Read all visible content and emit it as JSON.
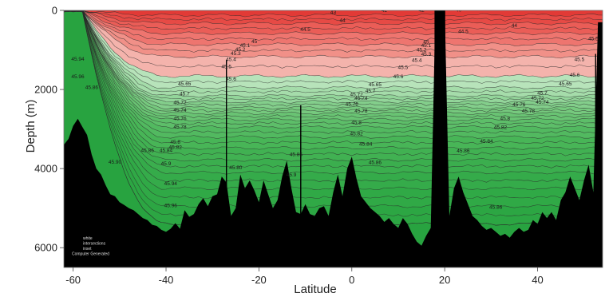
{
  "chart_data": {
    "type": "heatmap",
    "title": "",
    "xlabel": "Latitude",
    "ylabel": "Depth (m)",
    "xlim": [
      -62,
      54
    ],
    "ylim": [
      6500,
      0
    ],
    "y_reversed": true,
    "grid": false,
    "x_ticks": [
      -60,
      -40,
      -20,
      0,
      20,
      40
    ],
    "x_tick_labels": [
      "-60",
      "-40",
      "-20",
      "0",
      "20",
      "40"
    ],
    "y_ticks": [
      0,
      2000,
      4000,
      6000
    ],
    "y_tick_labels": [
      "0",
      "2000",
      "4000",
      "6000"
    ],
    "colors": {
      "high": "#e8413c",
      "mid": "#f4b5ad",
      "low_light": "#b4e2b8",
      "low": "#2eb350",
      "seafloor": "#000000"
    },
    "band_values": [
      43,
      44,
      44.5,
      45,
      45.3,
      45.5,
      45.6,
      45.65,
      45.7,
      45.72,
      45.74,
      45.76,
      45.78,
      45.8,
      45.82,
      45.84,
      45.86,
      45.88,
      45.9,
      45.94,
      45.96
    ],
    "band_colors": [
      "#e23a36",
      "#e64a45",
      "#ea5d57",
      "#ee756f",
      "#f19088",
      "#f4b3ac",
      "#b7e3ba",
      "#a5dcaa",
      "#93d59a",
      "#83ce8b",
      "#76c97e",
      "#69c373",
      "#5dbe69",
      "#52b960",
      "#48b557",
      "#41b152",
      "#3bae4e",
      "#35ab4a",
      "#30a946",
      "#2ca643",
      "#28a340"
    ],
    "band_tops_north": [
      0,
      120,
      330,
      580,
      860,
      1170,
      1660,
      1950,
      2160,
      2310,
      2460,
      2600,
      2760,
      2950,
      3200,
      3480,
      3780,
      4100,
      4500,
      4950,
      5400
    ],
    "contour_labels": [
      {
        "text": "43",
        "lat": -4,
        "depth": 90
      },
      {
        "text": "42",
        "lat": 7,
        "depth": 40
      },
      {
        "text": "42",
        "lat": 15,
        "depth": 40
      },
      {
        "text": "40",
        "lat": 23,
        "depth": 30
      },
      {
        "text": "44",
        "lat": -2,
        "depth": 290
      },
      {
        "text": "44.5",
        "lat": -10,
        "depth": 520
      },
      {
        "text": "44",
        "lat": 35,
        "depth": 420
      },
      {
        "text": "44.5",
        "lat": 24,
        "depth": 580
      },
      {
        "text": "45",
        "lat": -21,
        "depth": 830
      },
      {
        "text": "45.1",
        "lat": -23,
        "depth": 930
      },
      {
        "text": "45.2",
        "lat": -24,
        "depth": 1030
      },
      {
        "text": "45.3",
        "lat": -25,
        "depth": 1130
      },
      {
        "text": "45.4",
        "lat": -26,
        "depth": 1280
      },
      {
        "text": "45.5",
        "lat": -27,
        "depth": 1460
      },
      {
        "text": "45.6",
        "lat": -26,
        "depth": 1780
      },
      {
        "text": "45.65",
        "lat": -36,
        "depth": 1900
      },
      {
        "text": "45.7",
        "lat": -36,
        "depth": 2150
      },
      {
        "text": "45.72",
        "lat": -37,
        "depth": 2370
      },
      {
        "text": "45.74",
        "lat": -37,
        "depth": 2560
      },
      {
        "text": "45.76",
        "lat": -37,
        "depth": 2780
      },
      {
        "text": "45.78",
        "lat": -37,
        "depth": 2990
      },
      {
        "text": "45.8",
        "lat": -38,
        "depth": 3370
      },
      {
        "text": "45.82",
        "lat": -38,
        "depth": 3500
      },
      {
        "text": "45.84",
        "lat": -40,
        "depth": 3580
      },
      {
        "text": "45.86",
        "lat": -44,
        "depth": 3580
      },
      {
        "text": "45.90",
        "lat": -51,
        "depth": 3880
      },
      {
        "text": "45.9",
        "lat": -40,
        "depth": 3920
      },
      {
        "text": "45.94",
        "lat": -39,
        "depth": 4420
      },
      {
        "text": "45.96",
        "lat": -39,
        "depth": 4980
      },
      {
        "text": "45.94",
        "lat": -59,
        "depth": 1270
      },
      {
        "text": "45.96",
        "lat": -59,
        "depth": 1720
      },
      {
        "text": "45.86",
        "lat": -56,
        "depth": 1990
      },
      {
        "text": "45.80",
        "lat": -25,
        "depth": 4020
      },
      {
        "text": "45.9",
        "lat": -13,
        "depth": 4200
      },
      {
        "text": "45.86",
        "lat": -12,
        "depth": 3680
      },
      {
        "text": "45.84",
        "lat": 3,
        "depth": 3420
      },
      {
        "text": "45.82",
        "lat": 1,
        "depth": 3160
      },
      {
        "text": "45.8",
        "lat": 1,
        "depth": 2880
      },
      {
        "text": "45.78",
        "lat": 2,
        "depth": 2580
      },
      {
        "text": "45.76",
        "lat": 0,
        "depth": 2410
      },
      {
        "text": "45.74",
        "lat": 2,
        "depth": 2260
      },
      {
        "text": "45.72",
        "lat": 1,
        "depth": 2170
      },
      {
        "text": "45.7",
        "lat": 4,
        "depth": 2080
      },
      {
        "text": "45.65",
        "lat": 5,
        "depth": 1920
      },
      {
        "text": "45.6",
        "lat": 10,
        "depth": 1720
      },
      {
        "text": "45.5",
        "lat": 11,
        "depth": 1480
      },
      {
        "text": "45.4",
        "lat": 14,
        "depth": 1300
      },
      {
        "text": "45.3",
        "lat": 16,
        "depth": 1150
      },
      {
        "text": "45.2",
        "lat": 15,
        "depth": 1040
      },
      {
        "text": "45.1",
        "lat": 16,
        "depth": 930
      },
      {
        "text": "45",
        "lat": 16,
        "depth": 840
      },
      {
        "text": "45.86",
        "lat": 5,
        "depth": 3890
      },
      {
        "text": "45.86",
        "lat": 24,
        "depth": 3590
      },
      {
        "text": "45.84",
        "lat": 29,
        "depth": 3350
      },
      {
        "text": "45.82",
        "lat": 32,
        "depth": 3000
      },
      {
        "text": "45.8",
        "lat": 33,
        "depth": 2780
      },
      {
        "text": "45.78",
        "lat": 38,
        "depth": 2580
      },
      {
        "text": "45.76",
        "lat": 36,
        "depth": 2420
      },
      {
        "text": "45.74",
        "lat": 41,
        "depth": 2360
      },
      {
        "text": "45.72",
        "lat": 40,
        "depth": 2260
      },
      {
        "text": "45.7",
        "lat": 41,
        "depth": 2130
      },
      {
        "text": "45.65",
        "lat": 46,
        "depth": 1900
      },
      {
        "text": "45.6",
        "lat": 48,
        "depth": 1680
      },
      {
        "text": "45.5",
        "lat": 49,
        "depth": 1280
      },
      {
        "text": "45.86",
        "lat": 31,
        "depth": 5020
      },
      {
        "text": "45.5",
        "lat": 52,
        "depth": 760
      }
    ],
    "seafloor_profile": [
      [
        -62,
        3400
      ],
      [
        -61,
        3250
      ],
      [
        -60,
        2920
      ],
      [
        -59,
        2740
      ],
      [
        -58,
        2950
      ],
      [
        -57,
        3150
      ],
      [
        -56,
        3650
      ],
      [
        -55,
        4000
      ],
      [
        -54,
        4150
      ],
      [
        -53,
        4420
      ],
      [
        -52,
        4650
      ],
      [
        -51,
        4700
      ],
      [
        -50,
        4850
      ],
      [
        -49,
        4920
      ],
      [
        -48,
        5000
      ],
      [
        -47,
        5050
      ],
      [
        -46,
        5150
      ],
      [
        -45,
        5250
      ],
      [
        -44,
        5300
      ],
      [
        -43,
        5420
      ],
      [
        -42,
        5450
      ],
      [
        -41,
        5550
      ],
      [
        -40,
        5600
      ],
      [
        -39,
        5520
      ],
      [
        -38,
        5380
      ],
      [
        -37,
        5520
      ],
      [
        -36,
        5050
      ],
      [
        -35,
        5220
      ],
      [
        -34,
        5150
      ],
      [
        -33,
        4900
      ],
      [
        -32,
        4750
      ],
      [
        -31,
        4950
      ],
      [
        -30,
        4700
      ],
      [
        -29,
        4650
      ],
      [
        -28,
        4200
      ],
      [
        -27,
        4350
      ],
      [
        -26,
        5200
      ],
      [
        -25,
        5000
      ],
      [
        -24,
        4150
      ],
      [
        -23,
        4500
      ],
      [
        -22,
        4300
      ],
      [
        -21,
        4550
      ],
      [
        -20,
        4850
      ],
      [
        -19,
        4300
      ],
      [
        -18,
        4650
      ],
      [
        -17,
        5000
      ],
      [
        -16,
        4800
      ],
      [
        -15,
        4200
      ],
      [
        -14,
        3800
      ],
      [
        -13,
        4500
      ],
      [
        -12,
        5100
      ],
      [
        -11,
        5150
      ],
      [
        -10,
        4900
      ],
      [
        -9,
        5150
      ],
      [
        -8,
        5200
      ],
      [
        -7,
        5000
      ],
      [
        -6,
        4950
      ],
      [
        -5,
        5200
      ],
      [
        -4,
        4600
      ],
      [
        -3,
        4150
      ],
      [
        -2,
        4700
      ],
      [
        -1,
        4000
      ],
      [
        0,
        3700
      ],
      [
        1,
        4250
      ],
      [
        2,
        4700
      ],
      [
        3,
        4850
      ],
      [
        4,
        5000
      ],
      [
        5,
        5100
      ],
      [
        6,
        5200
      ],
      [
        7,
        5350
      ],
      [
        8,
        5250
      ],
      [
        9,
        5400
      ],
      [
        10,
        5500
      ],
      [
        11,
        5250
      ],
      [
        12,
        5400
      ],
      [
        13,
        5650
      ],
      [
        14,
        5850
      ],
      [
        15,
        5950
      ],
      [
        16,
        5700
      ],
      [
        17,
        5500
      ],
      [
        18,
        0
      ],
      [
        20,
        0
      ],
      [
        21,
        5200
      ],
      [
        22,
        4500
      ],
      [
        23,
        4200
      ],
      [
        24,
        4600
      ],
      [
        25,
        4900
      ],
      [
        26,
        5200
      ],
      [
        27,
        5300
      ],
      [
        28,
        5450
      ],
      [
        29,
        5550
      ],
      [
        30,
        5500
      ],
      [
        31,
        5600
      ],
      [
        32,
        5700
      ],
      [
        33,
        5650
      ],
      [
        34,
        5750
      ],
      [
        35,
        5600
      ],
      [
        36,
        5500
      ],
      [
        37,
        5600
      ],
      [
        38,
        5550
      ],
      [
        39,
        5300
      ],
      [
        40,
        5400
      ],
      [
        41,
        5100
      ],
      [
        42,
        5250
      ],
      [
        43,
        5100
      ],
      [
        44,
        5300
      ],
      [
        45,
        4800
      ],
      [
        46,
        4600
      ],
      [
        47,
        4200
      ],
      [
        48,
        4500
      ],
      [
        49,
        4800
      ],
      [
        50,
        4300
      ],
      [
        51,
        3900
      ],
      [
        52,
        4600
      ],
      [
        53,
        300
      ],
      [
        54,
        300
      ]
    ],
    "ridge_spikes": [
      {
        "lat": -27,
        "top_depth": 1250
      },
      {
        "lat": -11,
        "top_depth": 2400
      },
      {
        "lat": 52.5,
        "top_depth": 1100
      }
    ],
    "land_gap": {
      "from_lat": 17.8,
      "to_lat": 20.1
    },
    "corner_note": [
      "white",
      "intersections",
      "inset",
      "Computer Generated"
    ]
  }
}
